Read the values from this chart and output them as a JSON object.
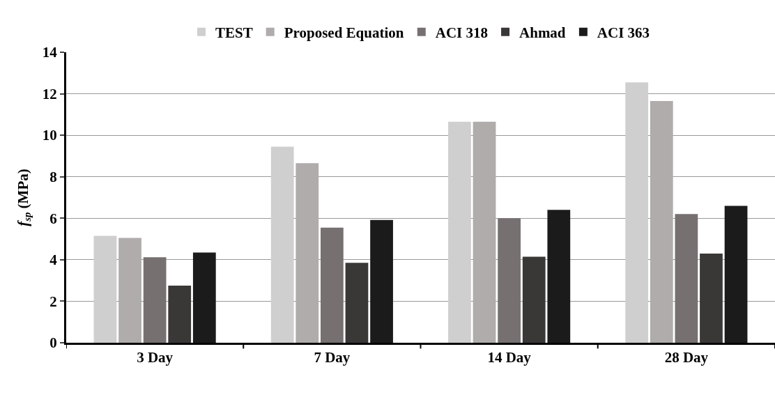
{
  "chart_data": {
    "type": "bar",
    "ylabel": "f$_{sp}$ (MPa)",
    "categories": [
      "3 Day",
      "7 Day",
      "14 Day",
      "28 Day"
    ],
    "series": [
      {
        "name": "TEST",
        "color": "#d0cfd0",
        "values": [
          5.15,
          9.45,
          10.65,
          12.55
        ]
      },
      {
        "name": "Proposed Equation",
        "color": "#afacab",
        "values": [
          5.05,
          8.65,
          10.65,
          11.65
        ]
      },
      {
        "name": "ACI 318",
        "color": "#767170",
        "values": [
          4.12,
          5.55,
          6.0,
          6.2
        ]
      },
      {
        "name": "Ahmad",
        "color": "#3a3837",
        "values": [
          2.75,
          3.85,
          4.15,
          4.3
        ]
      },
      {
        "name": "ACI 363",
        "color": "#1b1b1b",
        "values": [
          4.35,
          5.92,
          6.4,
          6.6
        ]
      }
    ],
    "ylim": [
      0,
      14
    ],
    "yticks": [
      0,
      2,
      4,
      6,
      8,
      10,
      12,
      14
    ],
    "grid": "y",
    "legend": "top"
  }
}
